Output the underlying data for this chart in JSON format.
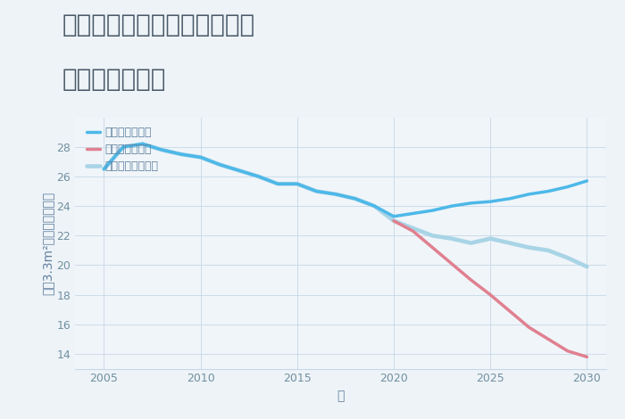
{
  "title_line1": "兵庫県姫路市飾磨区矢倉町の",
  "title_line2": "土地の価格推移",
  "xlabel": "年",
  "ylabel": "坪（3.3m²）単価（万円）",
  "background_color": "#eef3f7",
  "plot_background": "#f0f5f9",
  "good_scenario": {
    "label": "グッドシナリオ",
    "color": "#4db8e8",
    "x": [
      2005,
      2006,
      2007,
      2008,
      2009,
      2010,
      2011,
      2012,
      2013,
      2014,
      2015,
      2016,
      2017,
      2018,
      2019,
      2020,
      2021,
      2022,
      2023,
      2024,
      2025,
      2026,
      2027,
      2028,
      2029,
      2030
    ],
    "y": [
      26.5,
      28.0,
      28.2,
      27.8,
      27.5,
      27.3,
      26.8,
      26.4,
      26.0,
      25.5,
      25.5,
      25.0,
      24.8,
      24.5,
      24.0,
      23.3,
      23.5,
      23.7,
      24.0,
      24.2,
      24.3,
      24.5,
      24.8,
      25.0,
      25.3,
      25.7
    ]
  },
  "bad_scenario": {
    "label": "バッドシナリオ",
    "color": "#e08090",
    "x": [
      2020,
      2021,
      2022,
      2023,
      2024,
      2025,
      2026,
      2027,
      2028,
      2029,
      2030
    ],
    "y": [
      23.0,
      22.3,
      21.2,
      20.1,
      19.0,
      18.0,
      16.9,
      15.8,
      15.0,
      14.2,
      13.8
    ]
  },
  "normal_scenario": {
    "label": "ノーマルシナリオ",
    "color": "#a8d4e6",
    "x": [
      2005,
      2006,
      2007,
      2008,
      2009,
      2010,
      2011,
      2012,
      2013,
      2014,
      2015,
      2016,
      2017,
      2018,
      2019,
      2020,
      2021,
      2022,
      2023,
      2024,
      2025,
      2026,
      2027,
      2028,
      2029,
      2030
    ],
    "y": [
      26.5,
      28.0,
      28.2,
      27.8,
      27.5,
      27.3,
      26.8,
      26.4,
      26.0,
      25.5,
      25.5,
      25.0,
      24.8,
      24.5,
      24.0,
      23.0,
      22.5,
      22.0,
      21.8,
      21.5,
      21.8,
      21.5,
      21.2,
      21.0,
      20.5,
      19.9
    ]
  },
  "xlim": [
    2003.5,
    2031
  ],
  "ylim": [
    13,
    30
  ],
  "yticks": [
    14,
    16,
    18,
    20,
    22,
    24,
    26,
    28
  ],
  "xticks": [
    2005,
    2010,
    2015,
    2020,
    2025,
    2030
  ],
  "grid_color": "#c5d8e8",
  "line_width": 2.5,
  "legend_fontsize": 9,
  "title_fontsize": 20,
  "axis_fontsize": 10,
  "tick_color": "#7090a0",
  "label_color": "#6080a0"
}
